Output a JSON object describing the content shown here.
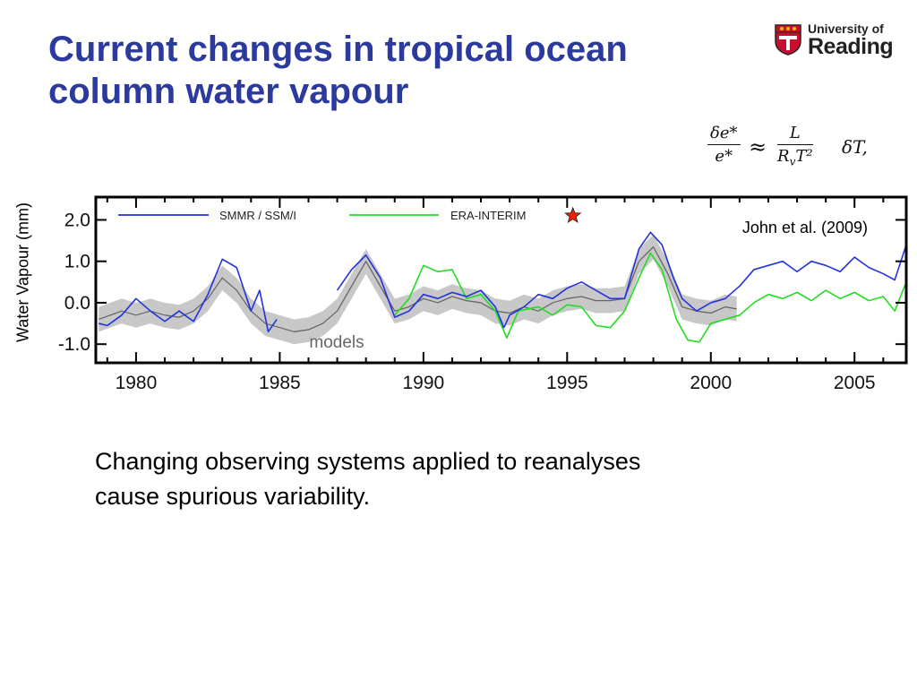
{
  "slide": {
    "title_lines": [
      "Current changes in tropical ocean",
      "column water vapour"
    ],
    "body_lines": [
      "Changing observing systems applied to reanalyses",
      "cause spurious variability."
    ]
  },
  "logo": {
    "line1": "University of",
    "line2": "Reading",
    "crest_color": "#c8102e"
  },
  "equation": {
    "lhs_num": "δe*",
    "lhs_den": "e*",
    "approx": "≈",
    "rhs_num": "L",
    "rhs_den": "R_vT²",
    "rhs_factor": "δT,"
  },
  "colors": {
    "title": "#2b3a9c",
    "ssmi": "#2233dd",
    "era": "#22dd22",
    "models": "#666666",
    "models_band": "#c8c8c8",
    "star": "#ee2200"
  },
  "chart_data": {
    "type": "line",
    "title": "",
    "xlabel": "",
    "ylabel": "Water Vapour (mm)",
    "xlim": [
      1978.6,
      2006.8
    ],
    "ylim": [
      -1.45,
      2.55
    ],
    "xticks": [
      1980,
      1985,
      1990,
      1995,
      2000,
      2005
    ],
    "yticks": [
      2.0,
      1.0,
      0.0,
      -1.0
    ],
    "ytick_labels": [
      "2.0",
      "1.0",
      "0.0",
      "-1.0"
    ],
    "grid": false,
    "legend": "top",
    "citation": "John et al. (2009)",
    "annotation": "models",
    "star_marker": {
      "x": 1995.2,
      "y": 2.1,
      "icon": "star-icon"
    },
    "series": [
      {
        "name": "SMMR / SSM/I",
        "color": "#2233dd",
        "segments": [
          [
            [
              1978.7,
              -0.5
            ],
            [
              1979.0,
              -0.55
            ],
            [
              1979.5,
              -0.3
            ],
            [
              1980.0,
              0.1
            ],
            [
              1980.5,
              -0.2
            ],
            [
              1981.0,
              -0.45
            ],
            [
              1981.5,
              -0.2
            ],
            [
              1982.0,
              -0.45
            ],
            [
              1982.5,
              0.2
            ],
            [
              1983.0,
              1.05
            ],
            [
              1983.5,
              0.85
            ],
            [
              1984.0,
              -0.2
            ],
            [
              1984.3,
              0.3
            ],
            [
              1984.6,
              -0.7
            ],
            [
              1984.9,
              -0.4
            ]
          ],
          [
            [
              1987.0,
              0.3
            ],
            [
              1987.5,
              0.8
            ],
            [
              1988.0,
              1.15
            ],
            [
              1988.5,
              0.6
            ],
            [
              1989.0,
              -0.35
            ],
            [
              1989.5,
              -0.2
            ],
            [
              1990.0,
              0.2
            ],
            [
              1990.5,
              0.1
            ],
            [
              1991.0,
              0.25
            ],
            [
              1991.5,
              0.15
            ],
            [
              1992.0,
              0.3
            ],
            [
              1992.5,
              -0.1
            ],
            [
              1992.8,
              -0.6
            ],
            [
              1993.0,
              -0.3
            ],
            [
              1993.5,
              -0.1
            ],
            [
              1994.0,
              0.2
            ],
            [
              1994.5,
              0.1
            ],
            [
              1995.0,
              0.35
            ],
            [
              1995.5,
              0.5
            ],
            [
              1996.0,
              0.3
            ],
            [
              1996.5,
              0.1
            ],
            [
              1997.0,
              0.1
            ],
            [
              1997.5,
              1.3
            ],
            [
              1997.9,
              1.7
            ],
            [
              1998.3,
              1.4
            ],
            [
              1998.7,
              0.6
            ],
            [
              1999.0,
              0.1
            ],
            [
              1999.5,
              -0.2
            ],
            [
              2000.0,
              0.0
            ],
            [
              2000.5,
              0.1
            ],
            [
              2001.0,
              0.4
            ],
            [
              2001.5,
              0.8
            ],
            [
              2002.0,
              0.9
            ],
            [
              2002.5,
              1.0
            ],
            [
              2003.0,
              0.75
            ],
            [
              2003.5,
              1.0
            ],
            [
              2004.0,
              0.9
            ],
            [
              2004.5,
              0.75
            ],
            [
              2005.0,
              1.1
            ],
            [
              2005.5,
              0.85
            ],
            [
              2006.0,
              0.7
            ],
            [
              2006.4,
              0.55
            ],
            [
              2006.8,
              1.4
            ]
          ]
        ]
      },
      {
        "name": "ERA-INTERIM",
        "color": "#22dd22",
        "segments": [
          [
            [
              1989.0,
              -0.3
            ],
            [
              1989.5,
              0.1
            ],
            [
              1990.0,
              0.9
            ],
            [
              1990.5,
              0.75
            ],
            [
              1991.0,
              0.8
            ],
            [
              1991.5,
              0.1
            ],
            [
              1992.0,
              0.2
            ],
            [
              1992.5,
              -0.2
            ],
            [
              1992.9,
              -0.85
            ],
            [
              1993.3,
              -0.2
            ],
            [
              1994.0,
              -0.1
            ],
            [
              1994.5,
              -0.3
            ],
            [
              1995.0,
              -0.05
            ],
            [
              1995.5,
              -0.1
            ],
            [
              1996.0,
              -0.55
            ],
            [
              1996.5,
              -0.6
            ],
            [
              1997.0,
              -0.2
            ],
            [
              1997.5,
              0.6
            ],
            [
              1997.9,
              1.2
            ],
            [
              1998.3,
              0.8
            ],
            [
              1998.8,
              -0.4
            ],
            [
              1999.2,
              -0.9
            ],
            [
              1999.6,
              -0.95
            ],
            [
              2000.0,
              -0.5
            ],
            [
              2000.5,
              -0.4
            ],
            [
              2001.0,
              -0.3
            ],
            [
              2001.5,
              0.0
            ],
            [
              2002.0,
              0.2
            ],
            [
              2002.5,
              0.1
            ],
            [
              2003.0,
              0.25
            ],
            [
              2003.5,
              0.05
            ],
            [
              2004.0,
              0.3
            ],
            [
              2004.5,
              0.1
            ],
            [
              2005.0,
              0.25
            ],
            [
              2005.5,
              0.05
            ],
            [
              2006.0,
              0.15
            ],
            [
              2006.4,
              -0.2
            ],
            [
              2006.8,
              0.5
            ]
          ]
        ]
      },
      {
        "name": "models",
        "color": "#666666",
        "segments": [
          [
            [
              1978.7,
              -0.4
            ],
            [
              1979.5,
              -0.2
            ],
            [
              1980.0,
              -0.3
            ],
            [
              1980.5,
              -0.2
            ],
            [
              1981.0,
              -0.3
            ],
            [
              1981.5,
              -0.35
            ],
            [
              1982.0,
              -0.2
            ],
            [
              1982.5,
              0.1
            ],
            [
              1983.0,
              0.6
            ],
            [
              1983.5,
              0.3
            ],
            [
              1984.0,
              -0.2
            ],
            [
              1984.5,
              -0.5
            ],
            [
              1985.0,
              -0.6
            ],
            [
              1985.5,
              -0.7
            ],
            [
              1986.0,
              -0.65
            ],
            [
              1986.5,
              -0.5
            ],
            [
              1987.0,
              -0.2
            ],
            [
              1987.5,
              0.4
            ],
            [
              1988.0,
              1.0
            ],
            [
              1988.5,
              0.4
            ],
            [
              1989.0,
              -0.2
            ],
            [
              1989.5,
              -0.1
            ],
            [
              1990.0,
              0.1
            ],
            [
              1990.5,
              0.0
            ],
            [
              1991.0,
              0.15
            ],
            [
              1991.5,
              0.05
            ],
            [
              1992.0,
              0.0
            ],
            [
              1992.5,
              -0.2
            ],
            [
              1993.0,
              -0.25
            ],
            [
              1993.5,
              -0.1
            ],
            [
              1994.0,
              -0.2
            ],
            [
              1994.5,
              0.0
            ],
            [
              1995.0,
              0.1
            ],
            [
              1995.5,
              0.15
            ],
            [
              1996.0,
              0.05
            ],
            [
              1996.5,
              0.05
            ],
            [
              1997.0,
              0.1
            ],
            [
              1997.5,
              1.0
            ],
            [
              1998.0,
              1.35
            ],
            [
              1998.5,
              0.7
            ],
            [
              1999.0,
              -0.1
            ],
            [
              1999.5,
              -0.2
            ],
            [
              2000.0,
              -0.25
            ],
            [
              2000.5,
              -0.1
            ],
            [
              2000.9,
              -0.15
            ]
          ]
        ],
        "band_halfwidth": 0.3
      }
    ]
  }
}
